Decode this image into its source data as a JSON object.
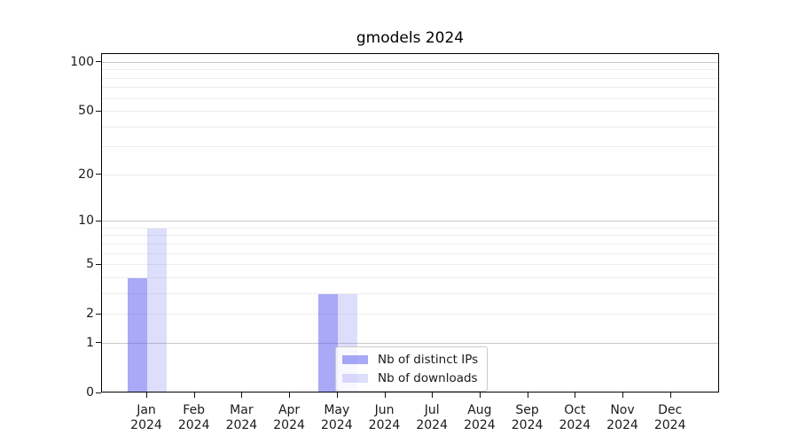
{
  "figure": {
    "background": "#ffffff"
  },
  "chart_data": {
    "type": "bar",
    "title": "gmodels 2024",
    "categories": [
      "Jan",
      "Feb",
      "Mar",
      "Apr",
      "May",
      "Jun",
      "Jul",
      "Aug",
      "Sep",
      "Oct",
      "Nov",
      "Dec"
    ],
    "year_label": "2024",
    "series": [
      {
        "name": "Nb of distinct IPs",
        "color": "rgba(99,99,241,0.55)",
        "color_on_white": "#a9a9f7",
        "values": [
          4,
          0,
          0,
          0,
          3,
          0,
          0,
          0,
          0,
          0,
          0,
          0
        ]
      },
      {
        "name": "Nb of downloads",
        "color": "rgba(99,99,241,0.22)",
        "color_on_white": "#dcdcf8",
        "values": [
          9,
          0,
          0,
          0,
          3,
          0,
          0,
          0,
          0,
          0,
          0,
          0
        ]
      }
    ],
    "xlabel": "",
    "ylabel": "",
    "yscale": "log1p",
    "ylim": [
      0,
      113
    ],
    "yticks": [
      0,
      1,
      2,
      5,
      10,
      20,
      50,
      100
    ],
    "grid_major": [
      1,
      10,
      100
    ],
    "grid_minor": [
      2,
      3,
      4,
      5,
      6,
      7,
      8,
      9,
      20,
      30,
      40,
      50,
      60,
      70,
      80,
      90
    ],
    "grid": "on",
    "legend_position": "lower center"
  },
  "colors": {
    "grid_major": "#c8c8c8",
    "grid_minor": "#ededed",
    "axis": "#000000",
    "text": "#1a1a1a"
  }
}
